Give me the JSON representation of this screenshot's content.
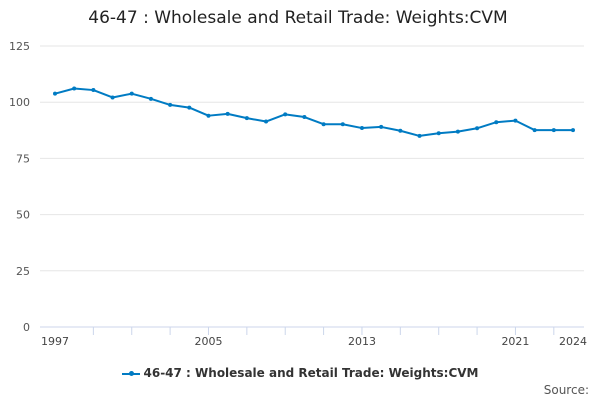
{
  "chart_data": {
    "type": "line",
    "title": "46-47 : Wholesale and Retail Trade: Weights:CVM",
    "x": [
      1997,
      1998,
      1999,
      2000,
      2001,
      2002,
      2003,
      2004,
      2005,
      2006,
      2007,
      2008,
      2009,
      2010,
      2011,
      2012,
      2013,
      2014,
      2015,
      2016,
      2017,
      2018,
      2019,
      2020,
      2021,
      2022,
      2023,
      2024
    ],
    "series": [
      {
        "name": "46-47 : Wholesale and Retail Trade: Weights:CVM",
        "values": [
          103.8,
          106.1,
          105.4,
          102.1,
          103.8,
          101.5,
          98.8,
          97.6,
          94.0,
          94.8,
          92.9,
          91.4,
          94.6,
          93.4,
          90.2,
          90.2,
          88.5,
          89.0,
          87.3,
          85.0,
          86.2,
          86.9,
          88.4,
          91.1,
          91.8,
          87.6,
          87.6,
          87.6
        ],
        "color": "#007bc3"
      }
    ],
    "yticks": [
      0,
      25,
      50,
      75,
      100,
      125
    ],
    "xtick_labels": [
      "1997",
      "2005",
      "2013",
      "2021",
      "2024"
    ],
    "ylim": [
      0,
      125
    ],
    "xlim": [
      1997,
      2024
    ],
    "grid": true,
    "legend": "bottom",
    "xlabel": "",
    "ylabel": ""
  },
  "source_label": "Source:"
}
